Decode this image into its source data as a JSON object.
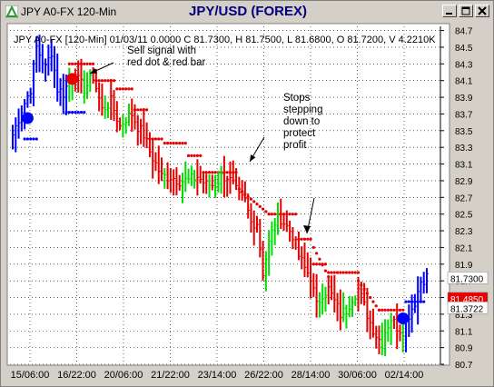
{
  "window": {
    "app_title": "JPY A0-FX 120-Min",
    "chart_title": "JPY/USD (FOREX)",
    "buttons": [
      "minimize",
      "maximize",
      "close"
    ]
  },
  "chart_data": {
    "type": "bar",
    "header": "JPY A0-FX [120-Min] 01/03/11  0.0000 C 81.7300, H 81.7500, L 81.6800, O 81.7200, V 4.2210K",
    "x_ticks": [
      "15/06:00",
      "16/22:00",
      "20/06:00",
      "21/22:00",
      "23/14:00",
      "26/22:00",
      "28/14:00",
      "30/06:00",
      "02/14:00"
    ],
    "y_ticks": [
      84.7,
      84.5,
      84.3,
      84.1,
      83.9,
      83.7,
      83.5,
      83.3,
      83.1,
      82.9,
      82.7,
      82.5,
      82.3,
      82.1,
      81.9,
      81.7,
      81.5,
      81.3,
      81.1,
      80.9,
      80.7
    ],
    "ylim": [
      80.7,
      84.75
    ],
    "price_labels": [
      {
        "text": "81.7300",
        "value": 81.73,
        "bg": "#ffffff",
        "fg": "#000000"
      },
      {
        "text": "81.4850",
        "value": 81.485,
        "bg": "#e60000",
        "fg": "#ffffff"
      },
      {
        "text": "81.3722",
        "value": 81.3722,
        "bg": "#ffffff",
        "fg": "#000000"
      }
    ],
    "annotations": [
      {
        "lines": [
          "Sell signal with",
          "red dot & red bar"
        ]
      },
      {
        "lines": [
          "Stops",
          "stepping",
          "down to",
          "protect",
          "profit"
        ]
      }
    ],
    "signals": [
      {
        "type": "buy",
        "bar": 5,
        "value": 83.65,
        "color": "#0000ff"
      },
      {
        "type": "sell",
        "bar": 20,
        "value": 84.12,
        "color": "#e60000"
      },
      {
        "type": "buy",
        "bar": 131,
        "value": 81.25,
        "color": "#0000ff"
      }
    ],
    "colors": {
      "up": "#00dd00",
      "down": "#e60000",
      "blue": "#0000ff",
      "bg": "#ffffff",
      "grid": "#000000"
    },
    "path_points": [
      [
        0,
        83.45
      ],
      [
        3,
        83.75
      ],
      [
        6,
        84.0
      ],
      [
        8,
        84.5
      ],
      [
        11,
        84.25
      ],
      [
        13,
        84.45
      ],
      [
        15,
        84.0
      ],
      [
        17,
        83.95
      ],
      [
        19,
        84.1
      ],
      [
        21,
        84.15
      ],
      [
        24,
        84.0
      ],
      [
        27,
        84.15
      ],
      [
        30,
        83.75
      ],
      [
        33,
        83.85
      ],
      [
        36,
        83.55
      ],
      [
        38,
        83.65
      ],
      [
        40,
        83.7
      ],
      [
        42,
        83.55
      ],
      [
        44,
        83.45
      ],
      [
        46,
        83.25
      ],
      [
        48,
        83.1
      ],
      [
        50,
        82.95
      ],
      [
        53,
        82.95
      ],
      [
        56,
        82.9
      ],
      [
        59,
        82.9
      ],
      [
        62,
        82.95
      ],
      [
        65,
        82.85
      ],
      [
        68,
        82.85
      ],
      [
        70,
        82.95
      ],
      [
        72,
        82.95
      ],
      [
        74,
        82.85
      ],
      [
        76,
        82.7
      ],
      [
        78,
        82.65
      ],
      [
        80,
        82.4
      ],
      [
        82,
        82.4
      ],
      [
        84,
        81.8
      ],
      [
        86,
        82.15
      ],
      [
        88,
        82.4
      ],
      [
        90,
        82.45
      ],
      [
        92,
        82.35
      ],
      [
        94,
        82.25
      ],
      [
        96,
        82.0
      ],
      [
        98,
        81.85
      ],
      [
        100,
        81.75
      ],
      [
        102,
        81.4
      ],
      [
        104,
        81.55
      ],
      [
        106,
        81.6
      ],
      [
        108,
        81.45
      ],
      [
        110,
        81.3
      ],
      [
        112,
        81.35
      ],
      [
        114,
        81.5
      ],
      [
        116,
        81.6
      ],
      [
        118,
        81.4
      ],
      [
        120,
        81.2
      ],
      [
        122,
        81.05
      ],
      [
        124,
        80.95
      ],
      [
        125,
        81.1
      ],
      [
        127,
        81.25
      ],
      [
        129,
        81.15
      ],
      [
        131,
        81.1
      ],
      [
        133,
        81.3
      ],
      [
        135,
        81.45
      ],
      [
        137,
        81.7
      ],
      [
        139,
        81.75
      ]
    ],
    "stops": [
      {
        "value": 83.4,
        "from": 4,
        "to": 8,
        "color": "blue"
      },
      {
        "value": 83.72,
        "from": 18,
        "to": 24,
        "color": "blue"
      },
      {
        "value": 84.3,
        "from": 19,
        "to": 27,
        "color": "red"
      },
      {
        "value": 84.1,
        "from": 28,
        "to": 34,
        "color": "red"
      },
      {
        "value": 84.0,
        "from": 35,
        "to": 40,
        "color": "red"
      },
      {
        "value": 83.75,
        "from": 41,
        "to": 45,
        "color": "red"
      },
      {
        "value": 83.4,
        "from": 46,
        "to": 50,
        "color": "red"
      },
      {
        "value": 83.35,
        "from": 51,
        "to": 58,
        "color": "red"
      },
      {
        "value": 83.2,
        "from": 59,
        "to": 63,
        "color": "red"
      },
      {
        "value": 83.0,
        "from": 64,
        "to": 75,
        "color": "red"
      },
      {
        "value": 82.5,
        "from": 86,
        "to": 95,
        "color": "red"
      },
      {
        "value": 82.2,
        "from": 96,
        "to": 100,
        "color": "red"
      },
      {
        "value": 81.9,
        "from": 101,
        "to": 105,
        "color": "red"
      },
      {
        "value": 81.8,
        "from": 106,
        "to": 116,
        "color": "red"
      },
      {
        "value": 81.35,
        "from": 123,
        "to": 131,
        "color": "red"
      },
      {
        "value": 81.45,
        "from": 132,
        "to": 138,
        "color": "blue"
      }
    ],
    "ramps": [
      {
        "from": [
          76,
          82.8
        ],
        "to": [
          86,
          82.5
        ]
      },
      {
        "from": [
          101,
          82.1
        ],
        "to": [
          106,
          81.75
        ]
      },
      {
        "from": [
          116,
          81.7
        ],
        "to": [
          123,
          81.35
        ]
      }
    ]
  }
}
